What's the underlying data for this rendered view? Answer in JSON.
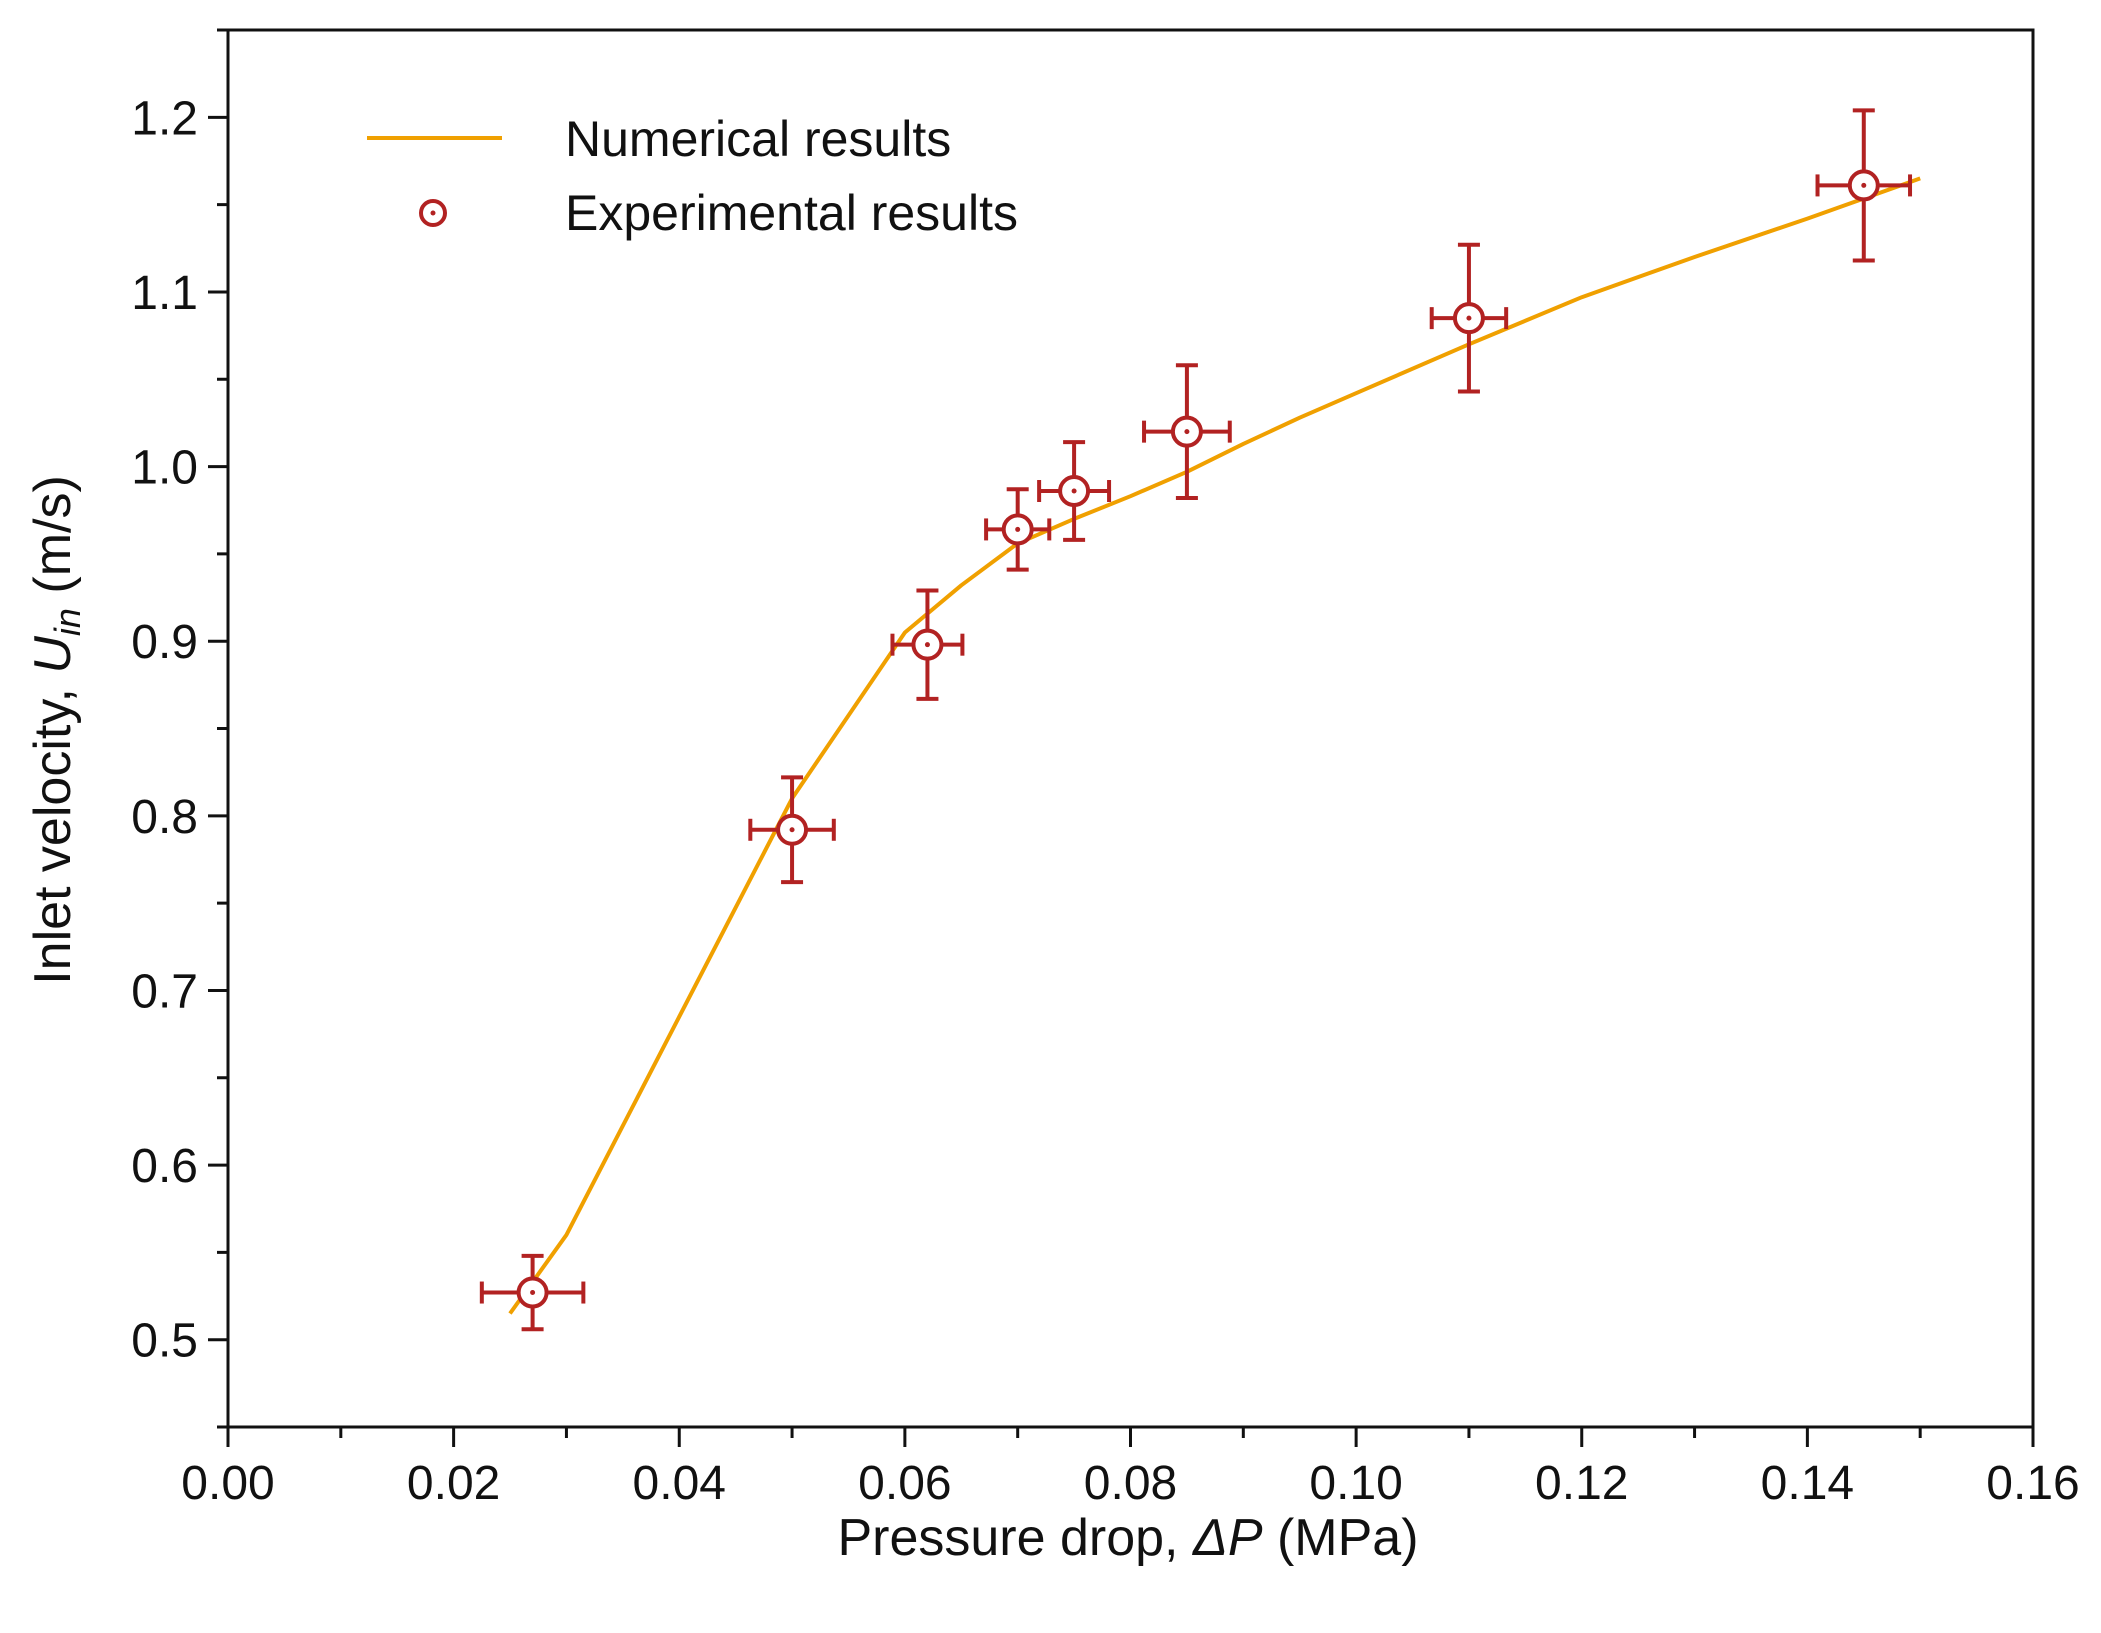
{
  "chart_data": {
    "type": "scatter",
    "xlabel": {
      "prefix": "Pressure drop, ",
      "symbol": "ΔP",
      "unit": " (MPa)"
    },
    "ylabel": {
      "prefix": "Inlet velocity, ",
      "symbol": "U",
      "subscript": "in",
      "unit": " (m/s)"
    },
    "xlim": [
      0.0,
      0.16
    ],
    "ylim": [
      0.45,
      1.25
    ],
    "x_ticks": [
      "0.00",
      "0.02",
      "0.04",
      "0.06",
      "0.08",
      "0.10",
      "0.12",
      "0.14",
      "0.16"
    ],
    "y_ticks": [
      "0.5",
      "0.6",
      "0.7",
      "0.8",
      "0.9",
      "1.0",
      "1.1",
      "1.2"
    ],
    "legend": {
      "position": "top-left",
      "entries": [
        {
          "label": "Numerical results",
          "kind": "line"
        },
        {
          "label": "Experimental results",
          "kind": "marker"
        }
      ]
    },
    "series": [
      {
        "name": "Numerical results",
        "kind": "line",
        "color": "#f0a000",
        "x": [
          0.025,
          0.03,
          0.04,
          0.05,
          0.06,
          0.065,
          0.07,
          0.075,
          0.08,
          0.085,
          0.09,
          0.095,
          0.1,
          0.11,
          0.12,
          0.13,
          0.14,
          0.15
        ],
        "y": [
          0.515,
          0.56,
          0.685,
          0.81,
          0.905,
          0.932,
          0.956,
          0.97,
          0.983,
          0.997,
          1.013,
          1.028,
          1.042,
          1.07,
          1.097,
          1.12,
          1.142,
          1.165
        ]
      },
      {
        "name": "Experimental results",
        "kind": "marker",
        "color": "#b22222",
        "points": [
          {
            "x": 0.027,
            "y": 0.527,
            "xerr": 0.0045,
            "yerr": 0.021
          },
          {
            "x": 0.05,
            "y": 0.792,
            "xerr": 0.0037,
            "yerr": 0.03
          },
          {
            "x": 0.062,
            "y": 0.898,
            "xerr": 0.0031,
            "yerr": 0.031
          },
          {
            "x": 0.07,
            "y": 0.964,
            "xerr": 0.0028,
            "yerr": 0.023
          },
          {
            "x": 0.075,
            "y": 0.986,
            "xerr": 0.0031,
            "yerr": 0.028
          },
          {
            "x": 0.085,
            "y": 1.02,
            "xerr": 0.0038,
            "yerr": 0.038
          },
          {
            "x": 0.11,
            "y": 1.085,
            "xerr": 0.0033,
            "yerr": 0.042
          },
          {
            "x": 0.145,
            "y": 1.161,
            "xerr": 0.0041,
            "yerr": 0.043
          }
        ]
      }
    ]
  }
}
